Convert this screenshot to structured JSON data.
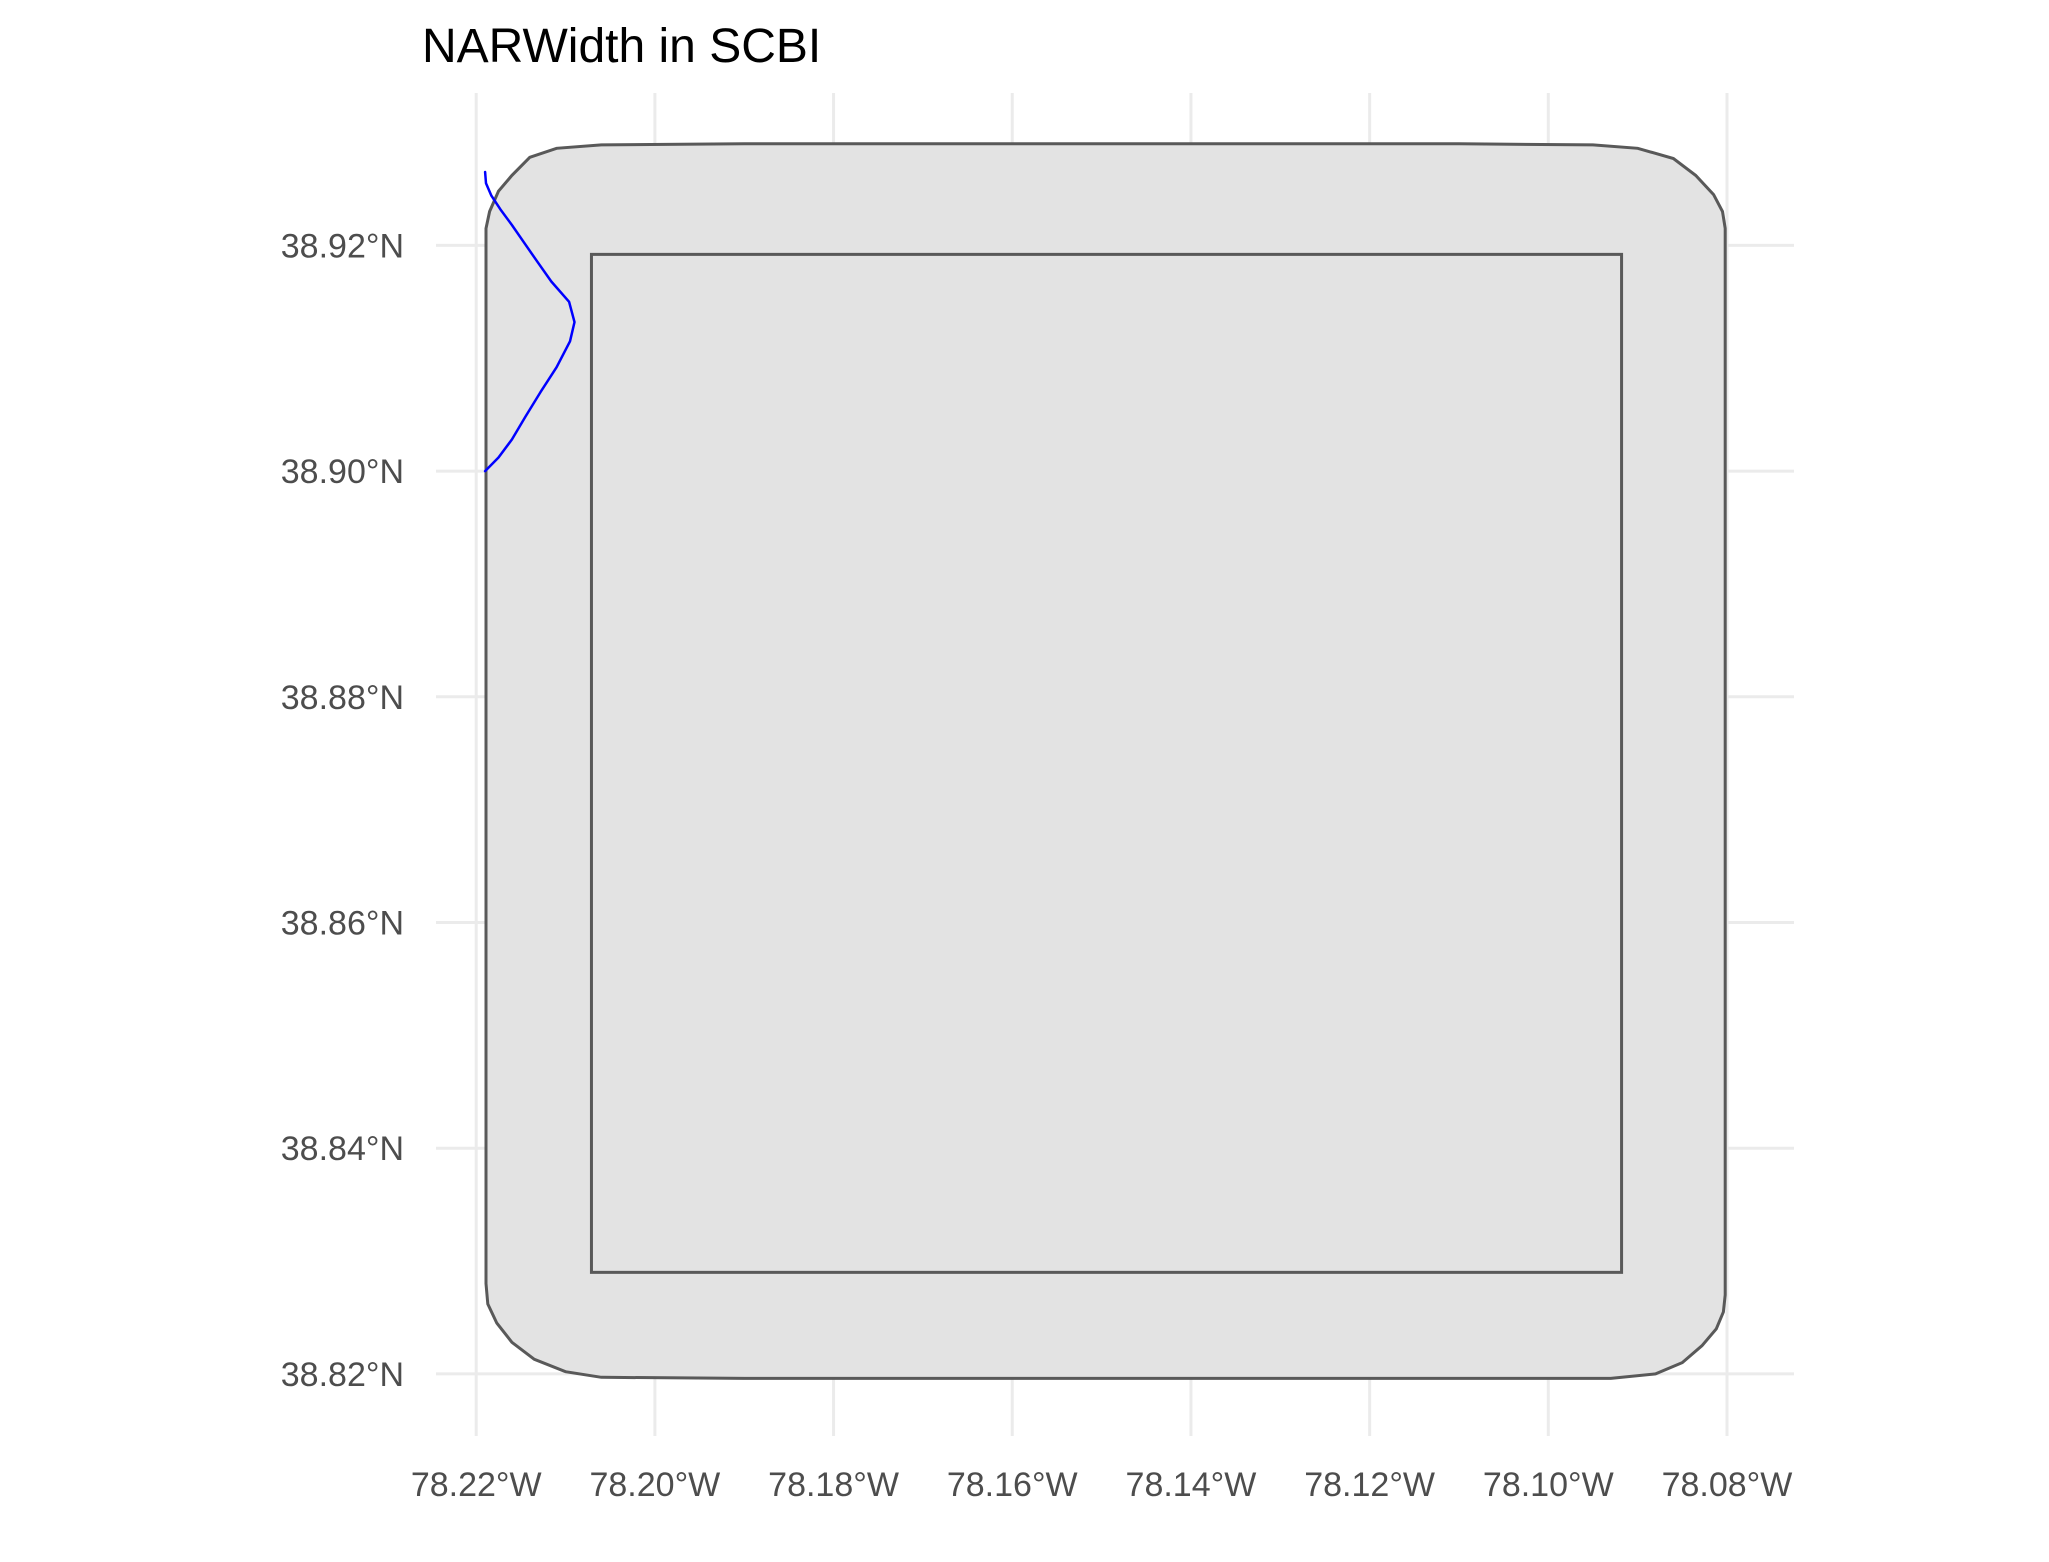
{
  "chart_data": {
    "type": "map",
    "title": "NARWidth in SCBI",
    "xlabel": "",
    "ylabel": "",
    "x_axis": {
      "range": [
        -78.2245,
        -78.0725
      ],
      "ticks": [
        -78.22,
        -78.2,
        -78.18,
        -78.16,
        -78.14,
        -78.12,
        -78.1,
        -78.08
      ],
      "tick_labels": [
        "78.22°W",
        "78.20°W",
        "78.18°W",
        "78.16°W",
        "78.14°W",
        "78.12°W",
        "78.10°W",
        "78.08°W"
      ]
    },
    "y_axis": {
      "range": [
        38.8145,
        38.9335
      ],
      "ticks": [
        38.82,
        38.84,
        38.86,
        38.88,
        38.9,
        38.92
      ],
      "tick_labels": [
        "38.82°N",
        "38.84°N",
        "38.86°N",
        "38.88°N",
        "38.90°N",
        "38.92°N"
      ]
    },
    "grid": true,
    "layers": [
      {
        "name": "buffer-area",
        "geometry": "polygon",
        "fill": "#e3e3e3",
        "stroke": "#595959",
        "coordinates": [
          [
            -78.2189,
            38.9215
          ],
          [
            -78.2185,
            38.923
          ],
          [
            -78.2175,
            38.9248
          ],
          [
            -78.216,
            38.9262
          ],
          [
            -78.214,
            38.9278
          ],
          [
            -78.211,
            38.9286
          ],
          [
            -78.206,
            38.9289
          ],
          [
            -78.19,
            38.929
          ],
          [
            -78.17,
            38.929
          ],
          [
            -78.15,
            38.929
          ],
          [
            -78.13,
            38.929
          ],
          [
            -78.11,
            38.929
          ],
          [
            -78.095,
            38.9289
          ],
          [
            -78.09,
            38.9286
          ],
          [
            -78.086,
            38.9277
          ],
          [
            -78.0835,
            38.9262
          ],
          [
            -78.0815,
            38.9245
          ],
          [
            -78.0805,
            38.923
          ],
          [
            -78.0802,
            38.9215
          ],
          [
            -78.0802,
            38.88
          ],
          [
            -78.0802,
            38.827
          ],
          [
            -78.0804,
            38.8255
          ],
          [
            -78.0812,
            38.824
          ],
          [
            -78.0828,
            38.8225
          ],
          [
            -78.085,
            38.821
          ],
          [
            -78.088,
            38.82
          ],
          [
            -78.093,
            38.8196
          ],
          [
            -78.11,
            38.8196
          ],
          [
            -78.15,
            38.8196
          ],
          [
            -78.19,
            38.8196
          ],
          [
            -78.206,
            38.8197
          ],
          [
            -78.21,
            38.8202
          ],
          [
            -78.2135,
            38.8213
          ],
          [
            -78.216,
            38.8228
          ],
          [
            -78.2177,
            38.8245
          ],
          [
            -78.2187,
            38.8262
          ],
          [
            -78.2189,
            38.828
          ],
          [
            -78.2189,
            38.88
          ]
        ]
      },
      {
        "name": "site-boundary",
        "geometry": "rectangle",
        "stroke": "#595959",
        "coordinates": [
          [
            -78.2071,
            38.829
          ],
          [
            -78.0918,
            38.9192
          ]
        ]
      },
      {
        "name": "NARWidth river",
        "geometry": "line",
        "stroke": "#0000ff",
        "coordinates": [
          [
            -78.219,
            38.9265
          ],
          [
            -78.2189,
            38.9255
          ],
          [
            -78.2183,
            38.9244
          ],
          [
            -78.2173,
            38.9232
          ],
          [
            -78.216,
            38.9218
          ],
          [
            -78.2146,
            38.9202
          ],
          [
            -78.2132,
            38.9186
          ],
          [
            -78.2116,
            38.9168
          ],
          [
            -78.2096,
            38.915
          ],
          [
            -78.209,
            38.9132
          ],
          [
            -78.2095,
            38.9115
          ],
          [
            -78.211,
            38.9092
          ],
          [
            -78.2128,
            38.907
          ],
          [
            -78.2145,
            38.9048
          ],
          [
            -78.216,
            38.9028
          ],
          [
            -78.2175,
            38.9012
          ],
          [
            -78.219,
            38.9
          ]
        ]
      }
    ]
  }
}
